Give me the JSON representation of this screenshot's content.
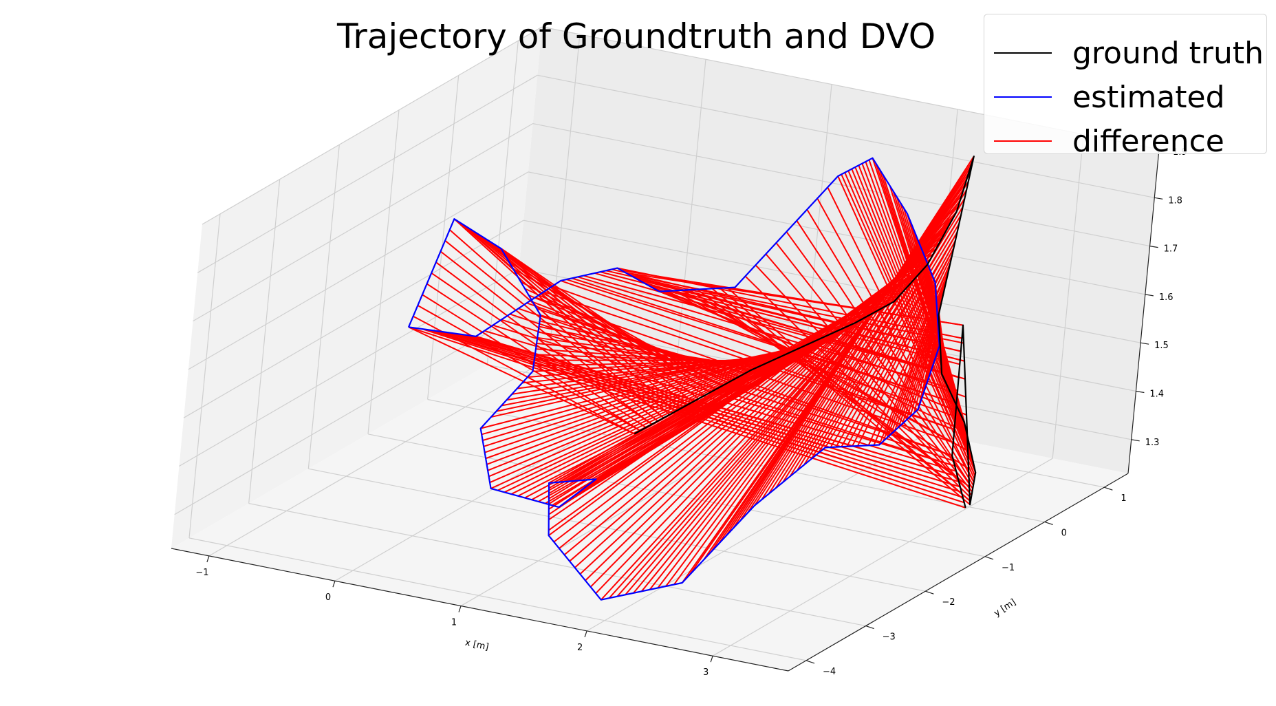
{
  "chart_data": {
    "type": "line",
    "projection": "3d",
    "title": "Trajectory of Groundtruth and DVO",
    "xlabel": "x [m]",
    "ylabel": "y [m]",
    "zlabel": "",
    "xlim": [
      -1.3,
      3.6
    ],
    "ylim": [
      -4.3,
      1.4
    ],
    "zlim": [
      1.23,
      1.9
    ],
    "xticks": [
      -1,
      0,
      1,
      2,
      3
    ],
    "yticks": [
      -4,
      -3,
      -2,
      -1,
      0,
      1
    ],
    "zticks": [
      1.3,
      1.4,
      1.5,
      1.6,
      1.7,
      1.8,
      1.9
    ],
    "grid": true,
    "legend_position": "top-right",
    "series": [
      {
        "name": "ground truth",
        "color": "#000000",
        "values": [
          [
            0.6,
            -0.6,
            1.3
          ],
          [
            0.9,
            -0.3,
            1.36
          ],
          [
            1.2,
            0.0,
            1.42
          ],
          [
            1.5,
            0.2,
            1.47
          ],
          [
            1.8,
            0.4,
            1.52
          ],
          [
            2.0,
            0.6,
            1.56
          ],
          [
            2.1,
            0.9,
            1.62
          ],
          [
            2.2,
            1.1,
            1.72
          ],
          [
            2.25,
            1.2,
            1.83
          ],
          [
            2.3,
            0.9,
            1.68
          ],
          [
            2.4,
            0.5,
            1.56
          ],
          [
            2.6,
            0.2,
            1.47
          ],
          [
            2.9,
            0.0,
            1.4
          ],
          [
            3.2,
            -0.4,
            1.34
          ],
          [
            3.4,
            -0.9,
            1.32
          ],
          [
            3.3,
            -1.1,
            1.7
          ],
          [
            3.4,
            -1.3,
            1.45
          ],
          [
            3.5,
            -1.2,
            1.34
          ]
        ]
      },
      {
        "name": "estimated",
        "color": "#0000ff",
        "values": [
          [
            -0.8,
            -1.6,
            1.52
          ],
          [
            -0.7,
            -1.2,
            1.72
          ],
          [
            -0.4,
            -1.0,
            1.66
          ],
          [
            0.0,
            -1.1,
            1.55
          ],
          [
            0.2,
            -1.6,
            1.48
          ],
          [
            0.1,
            -2.2,
            1.4
          ],
          [
            0.4,
            -2.6,
            1.32
          ],
          [
            0.9,
            -2.5,
            1.3
          ],
          [
            1.3,
            -2.8,
            1.4
          ],
          [
            1.2,
            -3.4,
            1.43
          ],
          [
            1.5,
            -4.0,
            1.38
          ],
          [
            2.0,
            -4.1,
            1.28
          ],
          [
            2.4,
            -3.6,
            1.3
          ],
          [
            2.6,
            -2.9,
            1.42
          ],
          [
            2.8,
            -2.2,
            1.5
          ],
          [
            3.0,
            -1.7,
            1.48
          ],
          [
            3.1,
            -1.3,
            1.53
          ],
          [
            3.0,
            -0.8,
            1.62
          ],
          [
            2.7,
            -0.3,
            1.7
          ],
          [
            2.3,
            0.0,
            1.8
          ],
          [
            1.9,
            0.2,
            1.88
          ],
          [
            1.6,
            0.3,
            1.82
          ],
          [
            1.1,
            -0.2,
            1.6
          ],
          [
            0.6,
            -0.4,
            1.58
          ],
          [
            0.3,
            -0.5,
            1.62
          ],
          [
            0.0,
            -0.8,
            1.6
          ],
          [
            -0.4,
            -1.3,
            1.5
          ],
          [
            -0.8,
            -1.6,
            1.52
          ]
        ]
      },
      {
        "name": "difference",
        "color": "#ff0000"
      }
    ]
  },
  "legend": {
    "ground_truth": "ground truth",
    "estimated": "estimated",
    "difference": "difference"
  }
}
